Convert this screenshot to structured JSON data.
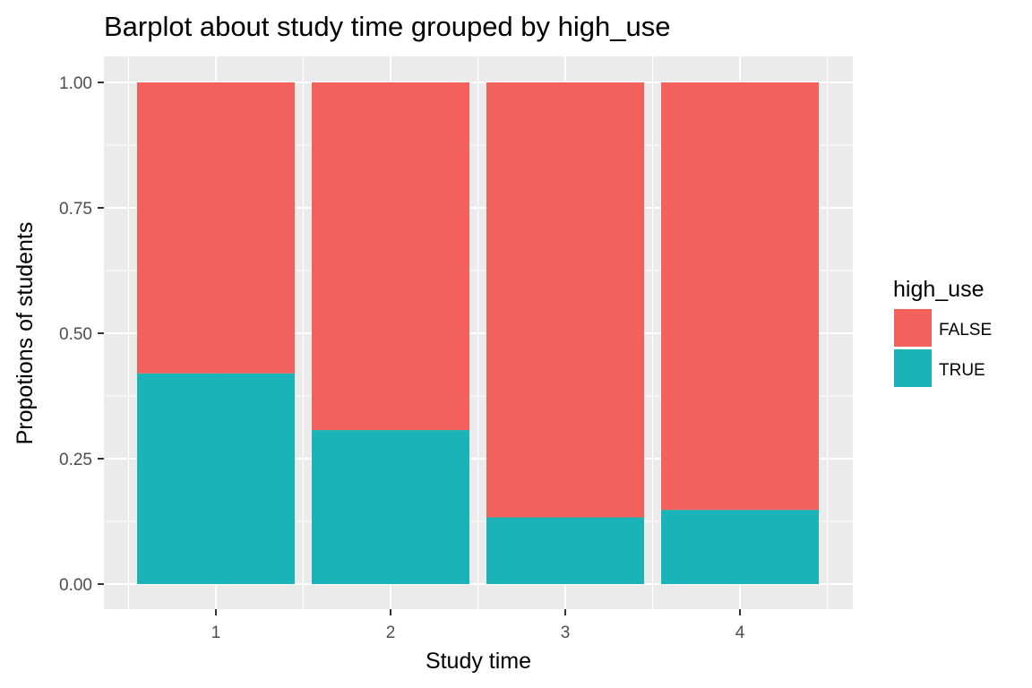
{
  "chart_data": {
    "type": "bar",
    "stacked": true,
    "title": "Barplot about study time grouped by high_use",
    "xlabel": "Study time",
    "ylabel": "Propotions of students",
    "categories": [
      "1",
      "2",
      "3",
      "4"
    ],
    "series": [
      {
        "name": "TRUE",
        "color": "#19b3b8",
        "values": [
          0.42,
          0.307,
          0.133,
          0.148
        ]
      },
      {
        "name": "FALSE",
        "color": "#f2615c",
        "values": [
          0.58,
          0.693,
          0.867,
          0.852
        ]
      }
    ],
    "ylim": [
      0,
      1
    ],
    "yticks": [
      "0.00",
      "0.25",
      "0.50",
      "0.75",
      "1.00"
    ],
    "ytick_values": [
      0,
      0.25,
      0.5,
      0.75,
      1
    ],
    "grid": true,
    "legend": {
      "title": "high_use",
      "position": "right",
      "entries": [
        {
          "label": "FALSE",
          "color": "#f2615c"
        },
        {
          "label": "TRUE",
          "color": "#19b3b8"
        }
      ]
    }
  }
}
